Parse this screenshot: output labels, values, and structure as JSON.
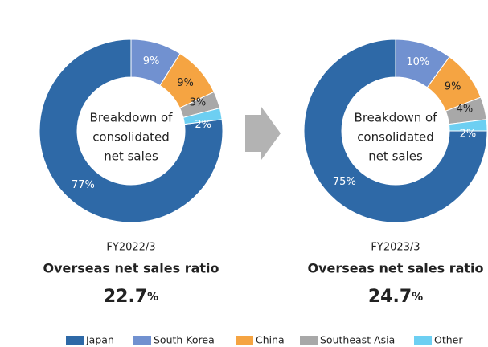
{
  "legend": {
    "categories": [
      "Japan",
      "South Korea",
      "China",
      "Southeast Asia",
      "Other"
    ],
    "colors": [
      "#2e69a7",
      "#7191d0",
      "#f5a442",
      "#a8a8a8",
      "#6dcff2"
    ]
  },
  "chart_data": [
    {
      "type": "pie",
      "center_text": [
        "Breakdown of",
        "consolidated",
        "net sales"
      ],
      "values": [
        77,
        9,
        9,
        3,
        2
      ],
      "value_labels": [
        "77%",
        "9%",
        "9%",
        "3%",
        "2%"
      ],
      "period": "FY2022/3",
      "ratio_label": "Overseas net sales ratio",
      "ratio": 22.7,
      "ratio_unit": "%"
    },
    {
      "type": "pie",
      "center_text": [
        "Breakdown of",
        "consolidated",
        "net sales"
      ],
      "values": [
        75,
        10,
        9,
        4,
        2
      ],
      "value_labels": [
        "75%",
        "10%",
        "9%",
        "4%",
        "2%"
      ],
      "period": "FY2023/3",
      "ratio_label": "Overseas net sales ratio",
      "ratio": 24.7,
      "ratio_unit": "%"
    }
  ]
}
